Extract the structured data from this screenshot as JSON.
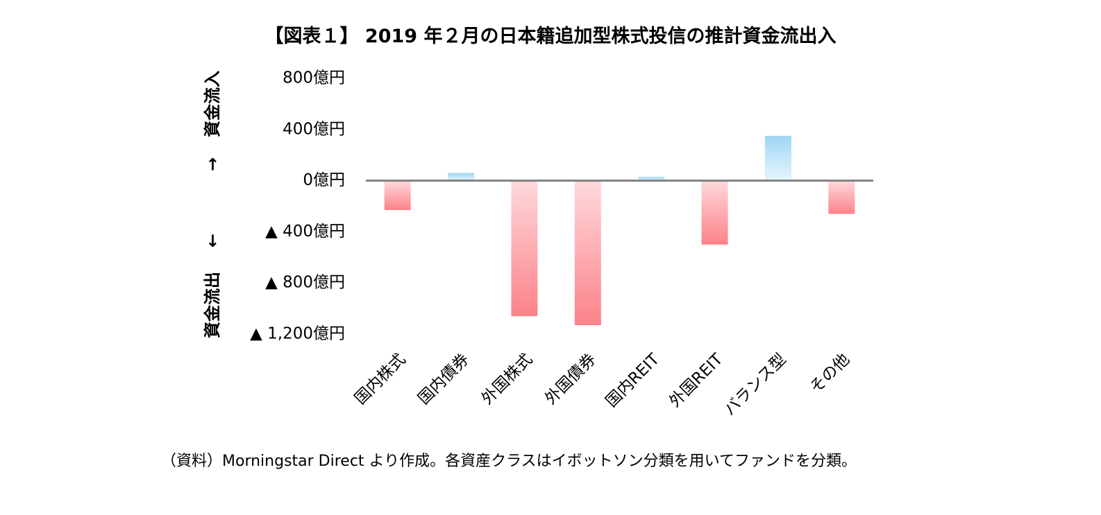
{
  "chart_data": {
    "type": "bar",
    "title": "【図表１】 2019 年２月の日本籍追加型株式投信の推計資金流出入",
    "categories": [
      "国内株式",
      "国内債券",
      "外国株式",
      "外国債券",
      "国内REIT",
      "外国REIT",
      "バランス型",
      "その他"
    ],
    "values": [
      -230,
      60,
      -1060,
      -1130,
      30,
      -500,
      350,
      -260
    ],
    "ylim": [
      -1200,
      800
    ],
    "yticks": [
      800,
      400,
      0,
      -400,
      -800,
      -1200
    ],
    "ytick_labels": [
      "800億円",
      "400億円",
      "0億円",
      "▲ 400億円",
      "▲ 800億円",
      "▲ 1,200億円"
    ],
    "side_labels": {
      "inflow": "資金流入",
      "inflow_arrow": "→",
      "outflow": "資金流出",
      "outflow_arrow": "←"
    },
    "colors": {
      "positive_top": "#9ed6f5",
      "positive_bottom": "#e6f5fd",
      "negative_top": "#ffd9dc",
      "negative_bottom": "#fb8289",
      "zero_line": "#808080"
    },
    "grid": false,
    "legend": "none"
  },
  "source_note": "（資料）Morningstar Direct より作成。各資産クラスはイボットソン分類を用いてファンドを分類。"
}
